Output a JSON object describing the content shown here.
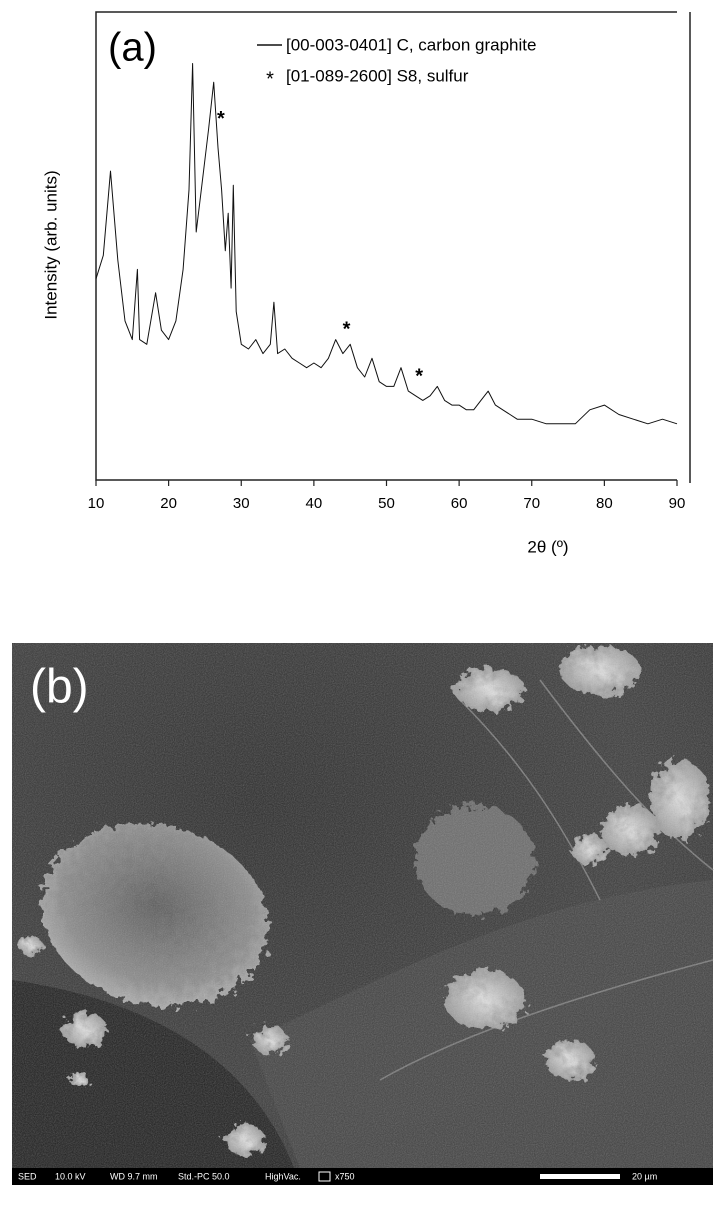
{
  "chart_data": {
    "type": "line",
    "panel_label": "(a)",
    "x_label": "2θ (º)",
    "y_label": "Intensity (arb. units)",
    "xlim": [
      10,
      90
    ],
    "xticks": [
      10,
      20,
      30,
      40,
      50,
      60,
      70,
      80,
      90
    ],
    "ylim": [
      0,
      100
    ],
    "series": [
      {
        "name": "[00-003-0401] C, carbon graphite",
        "color": "#111111",
        "x": [
          10,
          11,
          12,
          13,
          14,
          15,
          15.7,
          16,
          17,
          18.2,
          19,
          20,
          21,
          22,
          22.8,
          23.3,
          23.8,
          24.5,
          25.5,
          26.2,
          26.8,
          27.3,
          27.8,
          28.2,
          28.6,
          28.9,
          29.3,
          30,
          31,
          32,
          33,
          34,
          34.5,
          35,
          36,
          37,
          38,
          39,
          40,
          41,
          42,
          43,
          44,
          45,
          46,
          47,
          48,
          49,
          50,
          51,
          52,
          53,
          54,
          55,
          56,
          57,
          58,
          59,
          60,
          61,
          62,
          63,
          64,
          65,
          66,
          67,
          68,
          69,
          70,
          72,
          74,
          76,
          78,
          80,
          82,
          84,
          86,
          88,
          90
        ],
        "values": [
          43,
          48,
          66,
          47,
          34,
          30,
          45,
          30,
          29,
          40,
          32,
          30,
          34,
          45,
          62,
          89,
          53,
          62,
          75,
          85,
          71,
          62,
          49,
          57,
          41,
          63,
          36,
          29,
          28,
          30,
          27,
          29,
          38,
          27,
          28,
          26,
          25,
          24,
          25,
          24,
          26,
          30,
          27,
          29,
          24,
          22,
          26,
          21,
          20,
          20,
          24,
          19,
          18,
          17,
          18,
          20,
          17,
          16,
          16,
          15,
          15,
          17,
          19,
          16,
          15,
          14,
          13,
          13,
          13,
          12,
          12,
          12,
          15,
          16,
          14,
          13,
          12,
          13,
          12
        ]
      }
    ],
    "marker_legend": {
      "symbol": "*",
      "name": "[01-089-2600] S8, sulfur"
    },
    "annotations": [
      {
        "text": "*",
        "x": 27.2,
        "y": 77
      },
      {
        "text": "*",
        "x": 44.5,
        "y": 32
      },
      {
        "text": "*",
        "x": 54.5,
        "y": 22
      }
    ]
  },
  "figure_b": {
    "panel_label": "(b)",
    "info_bar": [
      "SED",
      "10.0 kV",
      "WD 9.7 mm",
      "Std.-PC 50.0",
      "HighVac.",
      "x750"
    ],
    "scale_bar": "20 µm"
  }
}
